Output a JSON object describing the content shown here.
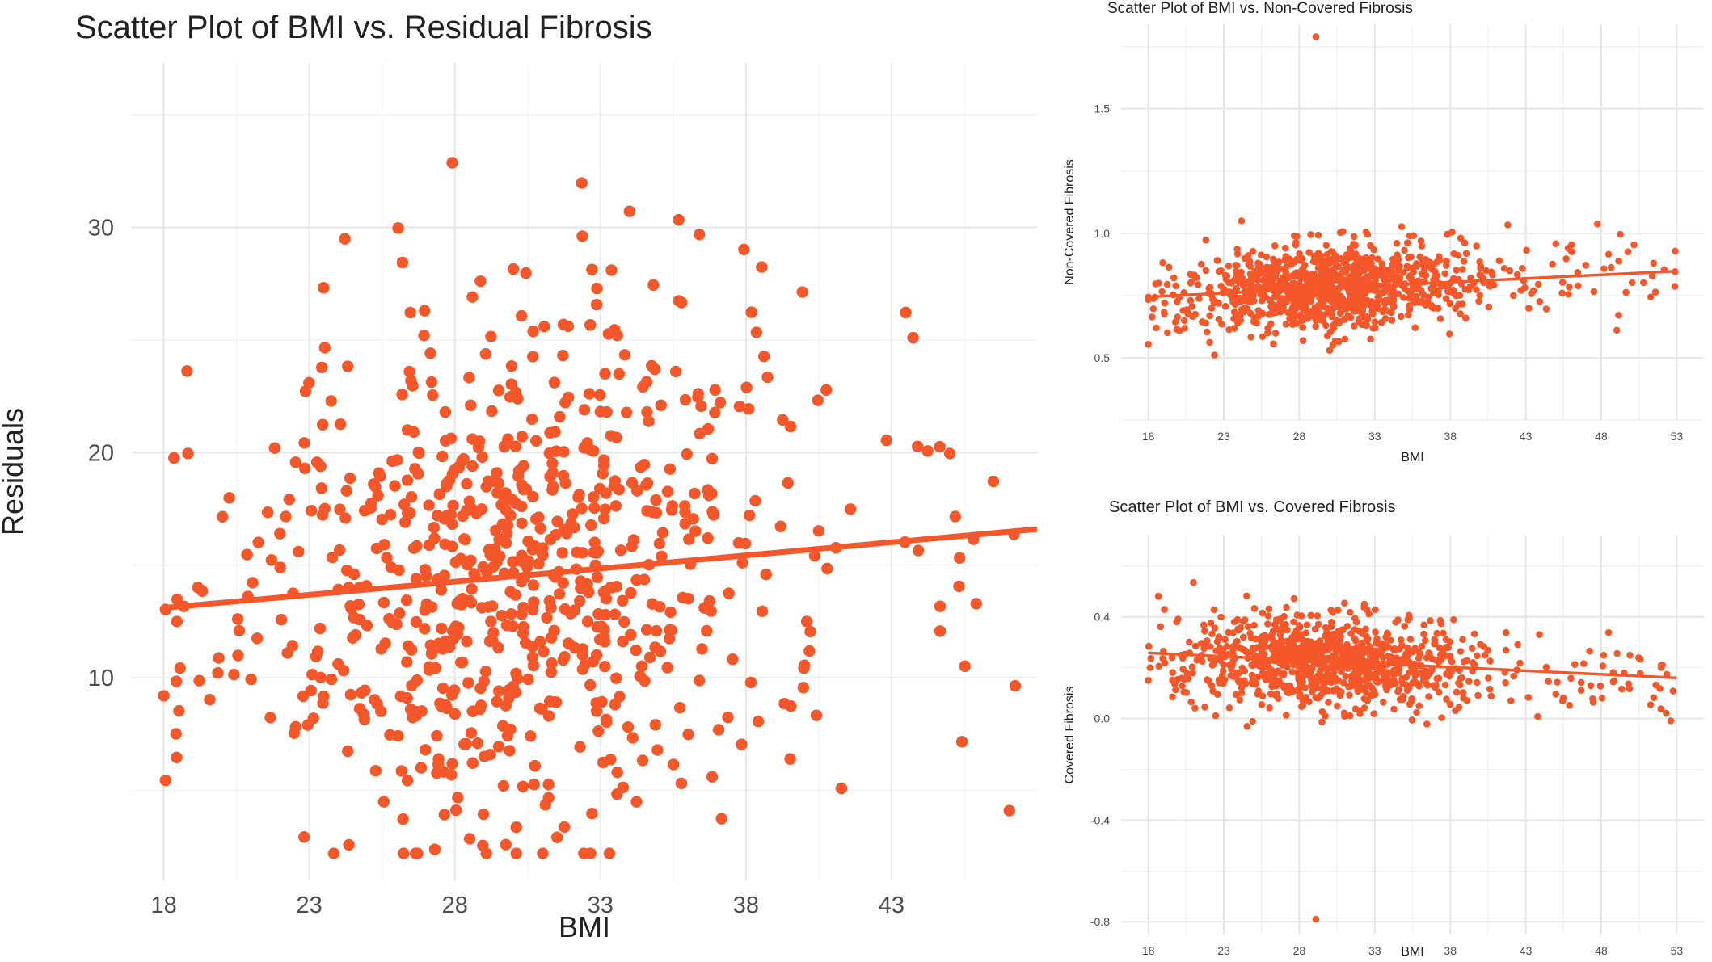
{
  "colors": {
    "point": "#f4582a",
    "line": "#f4582a",
    "grid": "#e6e6e6"
  },
  "chart_data": [
    {
      "type": "scatter",
      "title": "Scatter Plot of BMI vs. Residual Fibrosis",
      "xlabel": "BMI",
      "ylabel": "Residuals",
      "xticks": [
        18,
        23,
        28,
        33,
        38,
        43
      ],
      "yticks": [
        10,
        20,
        30
      ],
      "xlim": [
        16.9,
        48.0
      ],
      "ylim": [
        1.0,
        37.3
      ],
      "grid": true,
      "trend_line": {
        "x": [
          18,
          48
        ],
        "y": [
          13.1,
          16.6
        ]
      },
      "points": []
    },
    {
      "type": "scatter",
      "title": "Scatter Plot of BMI vs. Non-Covered Fibrosis",
      "xlabel": "BMI",
      "ylabel": "Non-Covered Fibrosis",
      "xticks": [
        18,
        23,
        28,
        33,
        38,
        43,
        48,
        53
      ],
      "yticks": [
        0.5,
        1.0,
        1.5
      ],
      "xlim": [
        16.2,
        54.8
      ],
      "ylim": [
        0.25,
        1.84
      ],
      "grid": true,
      "trend_line": {
        "x": [
          18,
          53
        ],
        "y": [
          0.745,
          0.848
        ]
      },
      "points": []
    },
    {
      "type": "scatter",
      "title": "Scatter Plot of BMI vs. Covered Fibrosis",
      "xlabel": "BMI",
      "ylabel": "Covered Fibrosis",
      "xticks": [
        18,
        23,
        28,
        33,
        38,
        43,
        48,
        53
      ],
      "yticks": [
        -0.8,
        -0.4,
        0.0,
        0.4
      ],
      "xlim": [
        16.2,
        54.8
      ],
      "ylim": [
        -0.85,
        0.72
      ],
      "grid": true,
      "trend_line": {
        "x": [
          18,
          53
        ],
        "y": [
          0.258,
          0.16
        ]
      },
      "points": []
    }
  ]
}
